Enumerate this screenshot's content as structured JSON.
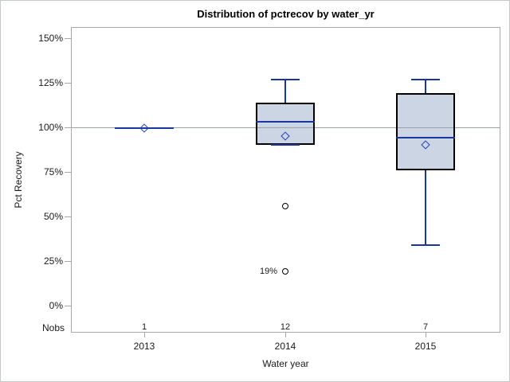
{
  "chart_data": {
    "type": "boxplot",
    "title": "Distribution of pctrecov by water_yr",
    "xlabel": "Water year",
    "ylabel": "Pct Recovery",
    "categories": [
      "2013",
      "2014",
      "2015"
    ],
    "nobs_label": "Nobs",
    "nobs": [
      1,
      12,
      7
    ],
    "y_axis": {
      "min": 0,
      "max": 150,
      "step": 25,
      "tick_labels": [
        "0%",
        "25%",
        "50%",
        "75%",
        "100%",
        "125%",
        "150%"
      ]
    },
    "reference_line": 100,
    "grid": false,
    "legend": "none",
    "groups": [
      {
        "category": "2013",
        "n": 1,
        "q1": 99.6,
        "median": 99.6,
        "q3": 99.6,
        "whisker_low": null,
        "whisker_high": null,
        "mean": 99.6,
        "outliers": []
      },
      {
        "category": "2014",
        "n": 12,
        "q1": 90,
        "median": 103,
        "q3": 114,
        "whisker_low": 90,
        "whisker_high": 127,
        "mean": 95,
        "outliers": [
          {
            "value": 56,
            "label": ""
          },
          {
            "value": 19,
            "label": "19%"
          }
        ]
      },
      {
        "category": "2015",
        "n": 7,
        "q1": 76,
        "median": 94,
        "q3": 119,
        "whisker_low": 34,
        "whisker_high": 127,
        "mean": 90,
        "outliers": []
      }
    ],
    "colors": {
      "box_fill": "#cbd5e4",
      "box_border": "#000000",
      "line_blue": "#17379e",
      "diamond_blue": "#2041bb",
      "outlier_black": "#000000",
      "reference_line": "#9ba1a8",
      "axis_gray": "#a8a8a8",
      "text": "#1a1a1a"
    }
  }
}
